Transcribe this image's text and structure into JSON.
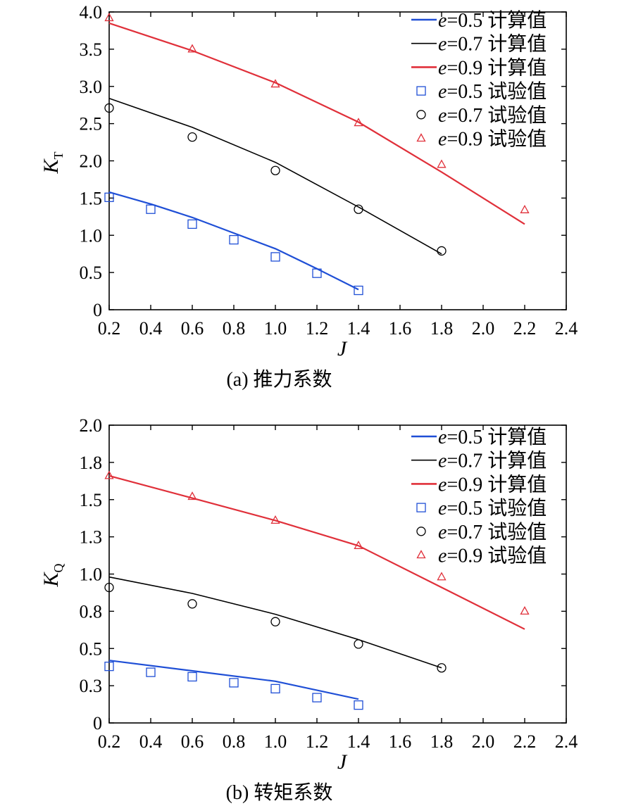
{
  "chart_data": [
    {
      "type": "line",
      "caption": "(a) 推力系数",
      "xlabel": "J",
      "ylabel_main": "K",
      "ylabel_sub": "T",
      "xlim": [
        0.2,
        2.4
      ],
      "ylim": [
        0,
        4.0
      ],
      "xticks": [
        "0.2",
        "0.4",
        "0.6",
        "0.8",
        "1.0",
        "1.2",
        "1.4",
        "1.6",
        "1.8",
        "2.0",
        "2.2",
        "2.4"
      ],
      "yticks": [
        "0",
        "0.5",
        "1.0",
        "1.5",
        "2.0",
        "2.5",
        "3.0",
        "3.5",
        "4.0"
      ],
      "ytick_values": [
        0,
        0.5,
        1.0,
        1.5,
        2.0,
        2.5,
        3.0,
        3.5,
        4.0
      ],
      "legend_position": "top-right",
      "grid": false,
      "series": [
        {
          "name": "e=0.5 计算值",
          "kind": "line",
          "color": "#1f4fd6",
          "x": [
            0.2,
            0.4,
            0.6,
            0.8,
            1.0,
            1.2,
            1.4
          ],
          "y": [
            1.58,
            1.42,
            1.24,
            1.03,
            0.82,
            0.55,
            0.27
          ]
        },
        {
          "name": "e=0.7 计算值",
          "kind": "line",
          "color": "#000000",
          "x": [
            0.2,
            0.6,
            1.0,
            1.4,
            1.8
          ],
          "y": [
            2.84,
            2.45,
            1.98,
            1.38,
            0.75
          ]
        },
        {
          "name": "e=0.9 计算值",
          "kind": "line",
          "color": "#e0303a",
          "x": [
            0.2,
            0.6,
            1.0,
            1.4,
            1.8,
            2.2
          ],
          "y": [
            3.85,
            3.48,
            3.05,
            2.52,
            1.85,
            1.15
          ]
        },
        {
          "name": "e=0.5 试验值",
          "kind": "square",
          "color": "#1f4fd6",
          "x": [
            0.2,
            0.4,
            0.6,
            0.8,
            1.0,
            1.2,
            1.4
          ],
          "y": [
            1.51,
            1.35,
            1.15,
            0.94,
            0.71,
            0.49,
            0.26
          ]
        },
        {
          "name": "e=0.7 试验值",
          "kind": "circle",
          "color": "#000000",
          "x": [
            0.2,
            0.6,
            1.0,
            1.4,
            1.8
          ],
          "y": [
            2.71,
            2.32,
            1.87,
            1.35,
            0.79
          ]
        },
        {
          "name": "e=0.9 试验值",
          "kind": "triangle",
          "color": "#e0303a",
          "x": [
            0.2,
            0.6,
            1.0,
            1.4,
            1.8,
            2.2
          ],
          "y": [
            3.92,
            3.5,
            3.03,
            2.51,
            1.95,
            1.34
          ]
        }
      ]
    },
    {
      "type": "line",
      "caption": "(b) 转矩系数",
      "xlabel": "J",
      "ylabel_main": "K",
      "ylabel_sub": "Q",
      "xlim": [
        0.2,
        2.4
      ],
      "ylim": [
        0,
        2.0
      ],
      "xticks": [
        "0.2",
        "0.4",
        "0.6",
        "0.8",
        "1.0",
        "1.2",
        "1.4",
        "1.6",
        "1.8",
        "2.0",
        "2.2",
        "2.4"
      ],
      "yticks": [
        "0",
        "0.3",
        "0.5",
        "0.8",
        "1.0",
        "1.3",
        "1.5",
        "1.8",
        "2.0"
      ],
      "ytick_values": [
        0,
        0.25,
        0.5,
        0.75,
        1.0,
        1.25,
        1.5,
        1.75,
        2.0
      ],
      "legend_position": "top-right",
      "grid": false,
      "series": [
        {
          "name": "e=0.5 计算值",
          "kind": "line",
          "color": "#1f4fd6",
          "x": [
            0.2,
            0.6,
            1.0,
            1.4
          ],
          "y": [
            0.42,
            0.35,
            0.28,
            0.16
          ]
        },
        {
          "name": "e=0.7 计算值",
          "kind": "line",
          "color": "#000000",
          "x": [
            0.2,
            0.6,
            1.0,
            1.4,
            1.8
          ],
          "y": [
            0.98,
            0.87,
            0.73,
            0.56,
            0.37
          ]
        },
        {
          "name": "e=0.9 计算值",
          "kind": "line",
          "color": "#e0303a",
          "x": [
            0.2,
            0.6,
            1.0,
            1.4,
            1.8,
            2.2
          ],
          "y": [
            1.66,
            1.51,
            1.36,
            1.19,
            0.91,
            0.63
          ]
        },
        {
          "name": "e=0.5 试验值",
          "kind": "square",
          "color": "#1f4fd6",
          "x": [
            0.2,
            0.4,
            0.6,
            0.8,
            1.0,
            1.2,
            1.4
          ],
          "y": [
            0.38,
            0.34,
            0.31,
            0.27,
            0.23,
            0.17,
            0.12
          ]
        },
        {
          "name": "e=0.7 试验值",
          "kind": "circle",
          "color": "#000000",
          "x": [
            0.2,
            0.6,
            1.0,
            1.4,
            1.8
          ],
          "y": [
            0.91,
            0.8,
            0.68,
            0.53,
            0.37
          ]
        },
        {
          "name": "e=0.9 试验值",
          "kind": "triangle",
          "color": "#e0303a",
          "x": [
            0.2,
            0.6,
            1.0,
            1.4,
            1.8,
            2.2
          ],
          "y": [
            1.66,
            1.52,
            1.36,
            1.19,
            0.98,
            0.75
          ]
        }
      ]
    }
  ]
}
